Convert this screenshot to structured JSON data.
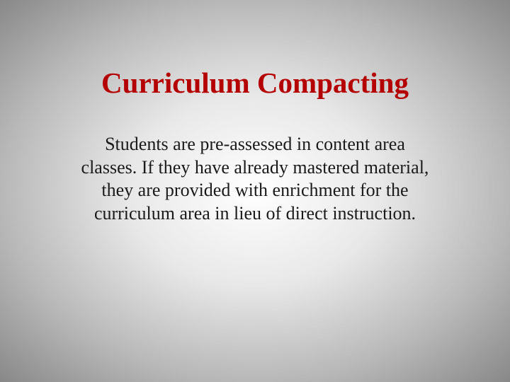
{
  "slide": {
    "title": "Curriculum Compacting",
    "body": "Students are pre-assessed in content area classes.  If they have already mastered material, they are provided with enrichment for the curriculum area in lieu of direct instruction.",
    "title_color": "#b50000",
    "title_fontsize": 41,
    "body_color": "#1a1a1a",
    "body_fontsize": 26,
    "background_center": "#ffffff",
    "background_edge": "#888888"
  }
}
